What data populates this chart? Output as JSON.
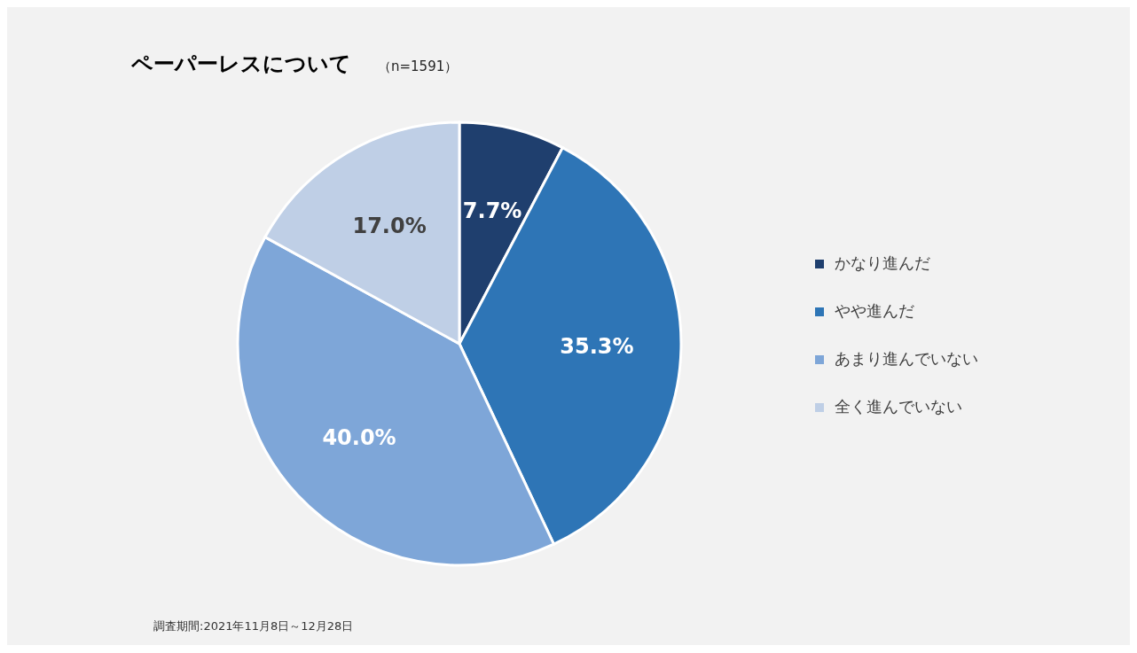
{
  "chart_data": {
    "type": "pie",
    "title": "ペーパーレスについて",
    "subtitle": "（n=1591）",
    "categories": [
      "かなり進んだ",
      "やや進んだ",
      "あまり進んでいない",
      "全く進んでいない"
    ],
    "values": [
      7.7,
      35.3,
      40.0,
      17.0
    ],
    "value_labels": [
      "7.7%",
      "35.3%",
      "40.0%",
      "17.0%"
    ],
    "colors": [
      "#1f3f6e",
      "#2e75b6",
      "#7ea6d8",
      "#bfcfe6"
    ],
    "legend": "right",
    "annotations": [
      "調査期間:2021年11月8日～12月28日"
    ]
  }
}
